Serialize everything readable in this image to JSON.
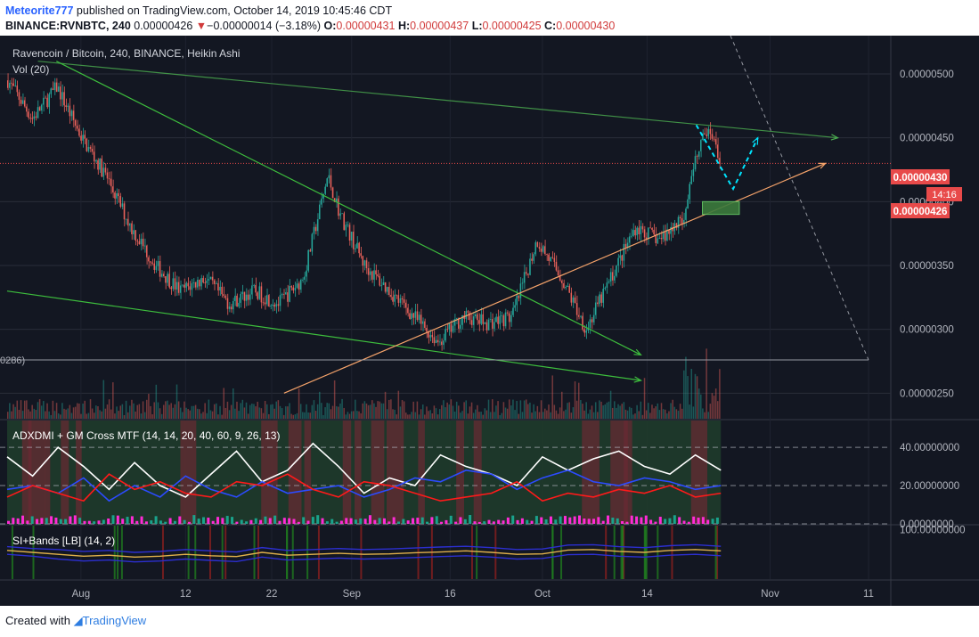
{
  "header": {
    "author": "Meteorite777",
    "published": "published on TradingView.com, October 14, 2019 10:45:46 CDT",
    "symbol": "BINANCE:RVNBTC, 240",
    "last": "0.00000426",
    "change_arrow": "▼",
    "change": "−0.00000014 (−3.18%)",
    "o_label": "O:",
    "o": "0.00000431",
    "h_label": "H:",
    "h": "0.00000437",
    "l_label": "L:",
    "l": "0.00000425",
    "c_label": "C:",
    "c": "0.00000430"
  },
  "main_pane": {
    "title": "Ravencoin / Bitcoin, 240, BINANCE, Heikin Ashi",
    "vol_label": "Vol (20)",
    "left_cut_label": "0286)",
    "price_tag_close": "0.00000430",
    "price_tag_timer": "14:16",
    "price_tag_last": "0.00000426"
  },
  "adx_pane": {
    "title": "ADXDMI + GM Cross MTF (14, 14, 20, 40, 60, 9, 26, 13)"
  },
  "si_pane": {
    "title": "SI+Bands [LB] (14, 2)"
  },
  "footer": {
    "created": "Created with",
    "brand": "TradingView"
  },
  "colors": {
    "background": "#131722",
    "bull": "#e8615a",
    "bear": "#26a69a",
    "adx": "#ffffff",
    "plus_di": "#2c4bff",
    "minus_di": "#ff1a1a",
    "trend_green": "#3dbd3d",
    "support": "#f5a36a",
    "projection": "#00e5ff"
  },
  "chart_data": [
    {
      "type": "candlestick",
      "title": "Ravencoin / Bitcoin, 240, BINANCE, Heikin Ashi",
      "y_ticks": [
        5e-06,
        4.5e-06,
        4e-06,
        3.5e-06,
        3e-06,
        2.5e-06
      ],
      "y_tick_labels": [
        "0.00000500",
        "0.00000450",
        "0.00000400",
        "0.00000350",
        "0.00000300",
        "0.00000250"
      ],
      "x_ticks": [
        "Aug",
        "12",
        "22",
        "Sep",
        "16",
        "Oct",
        "14",
        "Nov",
        "11"
      ],
      "ylim": [
        2.3e-06,
        5.3e-06
      ],
      "close_line": 4.3e-06,
      "price_path": [
        [
          0,
          4.95e-06
        ],
        [
          4,
          4.65e-06
        ],
        [
          8,
          4.9e-06
        ],
        [
          12,
          4.5e-06
        ],
        [
          16,
          4.2e-06
        ],
        [
          20,
          3.8e-06
        ],
        [
          24,
          3.5e-06
        ],
        [
          28,
          3.3e-06
        ],
        [
          32,
          3.4e-06
        ],
        [
          36,
          3.2e-06
        ],
        [
          40,
          3.3e-06
        ],
        [
          44,
          3.2e-06
        ],
        [
          48,
          3.4e-06
        ],
        [
          52,
          4.2e-06
        ],
        [
          54,
          3.9e-06
        ],
        [
          58,
          3.5e-06
        ],
        [
          62,
          3.3e-06
        ],
        [
          66,
          3.1e-06
        ],
        [
          70,
          2.9e-06
        ],
        [
          74,
          3.1e-06
        ],
        [
          78,
          3.05e-06
        ],
        [
          82,
          3.1e-06
        ],
        [
          86,
          3.7e-06
        ],
        [
          90,
          3.4e-06
        ],
        [
          94,
          3e-06
        ],
        [
          98,
          3.4e-06
        ],
        [
          102,
          3.8e-06
        ],
        [
          106,
          3.7e-06
        ],
        [
          110,
          3.9e-06
        ],
        [
          112,
          4.4e-06
        ],
        [
          114,
          4.6e-06
        ],
        [
          116,
          4.3e-06
        ]
      ],
      "annotations": {
        "upper_resistance": [
          [
            5,
            5.1e-06
          ],
          [
            135,
            4.5e-06
          ]
        ],
        "falling_wedge_top": [
          [
            8,
            5.1e-06
          ],
          [
            103,
            2.8e-06
          ]
        ],
        "lower_channel": [
          [
            0,
            3.3e-06
          ],
          [
            103,
            2.6e-06
          ]
        ],
        "rising_support": [
          [
            45,
            2.5e-06
          ],
          [
            133,
            4.3e-06
          ]
        ],
        "projection": [
          [
            112,
            4.6e-06
          ],
          [
            118,
            4.1e-06
          ],
          [
            122,
            4.5e-06
          ]
        ],
        "support_box": [
          [
            113,
            3.9e-06
          ],
          [
            119,
            4e-06
          ]
        ]
      }
    },
    {
      "type": "line",
      "title": "ADXDMI + GM Cross MTF (14, 14, 20, 40, 60, 9, 26, 13)",
      "y_ticks": [
        0,
        20,
        40
      ],
      "y_tick_labels": [
        "0.00000000",
        "20.00000000",
        "40.00000000"
      ],
      "ylim": [
        0,
        54
      ],
      "series": [
        {
          "color": "#ffffff",
          "values": [
            35,
            25,
            40,
            30,
            18,
            32,
            20,
            14,
            26,
            38,
            22,
            28,
            42,
            30,
            16,
            24,
            20,
            36,
            30,
            26,
            20,
            35,
            28,
            34,
            38,
            30,
            26,
            36,
            28
          ]
        },
        {
          "color": "#2c4bff",
          "values": [
            18,
            20,
            16,
            24,
            12,
            20,
            14,
            25,
            18,
            14,
            22,
            16,
            18,
            20,
            14,
            18,
            24,
            22,
            28,
            26,
            18,
            24,
            28,
            22,
            20,
            24,
            22,
            18,
            20
          ]
        },
        {
          "color": "#ff1a1a",
          "values": [
            14,
            20,
            16,
            12,
            26,
            18,
            22,
            16,
            14,
            22,
            20,
            26,
            18,
            14,
            22,
            20,
            16,
            12,
            14,
            16,
            22,
            12,
            16,
            14,
            18,
            16,
            20,
            14,
            16
          ]
        }
      ]
    },
    {
      "type": "line",
      "title": "SI+Bands [LB] (14, 2)",
      "y_ticks": [
        100
      ],
      "y_tick_labels": [
        "100.00000000"
      ],
      "ylim": [
        -160,
        120
      ],
      "series": [
        {
          "color": "#e0b04a",
          "values": [
            -10,
            -20,
            -30,
            -40,
            -35,
            -45,
            -40,
            -30,
            -38,
            -42,
            -20,
            -35,
            -30,
            -25,
            -30,
            -28,
            -22,
            -18,
            -12,
            -20,
            -30,
            -28,
            -8,
            -5,
            -15,
            -20,
            -10,
            -5,
            -12
          ]
        },
        {
          "color": "#2c2fd0",
          "values": [
            10,
            0,
            -5,
            -15,
            -10,
            -20,
            -15,
            -5,
            -12,
            -18,
            5,
            -10,
            -5,
            0,
            -5,
            -2,
            3,
            8,
            12,
            5,
            -5,
            -2,
            18,
            20,
            10,
            5,
            15,
            20,
            12
          ]
        },
        {
          "color": "#2c2fd0",
          "values": [
            -30,
            -40,
            -55,
            -65,
            -60,
            -70,
            -65,
            -55,
            -62,
            -68,
            -45,
            -60,
            -55,
            -50,
            -55,
            -52,
            -47,
            -42,
            -38,
            -45,
            -55,
            -52,
            -32,
            -30,
            -40,
            -45,
            -35,
            -30,
            -38
          ]
        }
      ]
    }
  ]
}
